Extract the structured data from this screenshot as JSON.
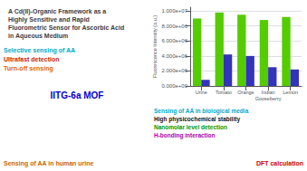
{
  "chart_data": {
    "type": "bar",
    "title": "A Cd(II)-Organic Framework as a\nHighly Sensitive and Rapid\nFluorometric Sensor for Ascorbic Acid\nin Aqueous Medium",
    "categories": [
      "Urine",
      "Tomato",
      "Orange",
      "Indian\nGooseberry",
      "Lemon"
    ],
    "series": [
      {
        "color": "#55cc00",
        "values": [
          9000000.0,
          9800000.0,
          9500000.0,
          8800000.0,
          9200000.0
        ]
      },
      {
        "color": "#3333bb",
        "values": [
          800000.0,
          4200000.0,
          4000000.0,
          2500000.0,
          2200000.0
        ]
      }
    ],
    "ylabel": "Fluorescence Intensity (a.u.)",
    "ylim": [
      0,
      10500000
    ],
    "yticks": [
      {
        "value": 0,
        "label": "0.000e+00"
      },
      {
        "value": 2000000,
        "label": "2.000e+06"
      },
      {
        "value": 4000000,
        "label": "4.000e+06"
      },
      {
        "value": 6000000,
        "label": "6.000e+06"
      },
      {
        "value": 8000000,
        "label": "8.000e+06"
      },
      {
        "value": 10000000,
        "label": "1.000e+07"
      }
    ],
    "grid": true,
    "annotations": [
      {
        "text": "Selective sensing of AA",
        "color": "#00aacc"
      },
      {
        "text": "Ultrafast detection",
        "color": "#cc2200"
      },
      {
        "text": "Turn-off sensing",
        "color": "#dd6600"
      },
      {
        "text": "Sensing of AA in biological media",
        "color": "#00aacc"
      },
      {
        "text": "High physicochemical stability",
        "color": "#111111"
      },
      {
        "text": "Nanomolar level detection",
        "color": "#009900"
      },
      {
        "text": "H-bonding interaction",
        "color": "#aa00aa"
      },
      {
        "text": "Sensing of AA in human urine",
        "color": "#cc6600"
      },
      {
        "text": "DFT calculation",
        "color": "#cc0000"
      },
      {
        "text": "IITG-6a MOF",
        "color": "#0000cc"
      }
    ]
  }
}
